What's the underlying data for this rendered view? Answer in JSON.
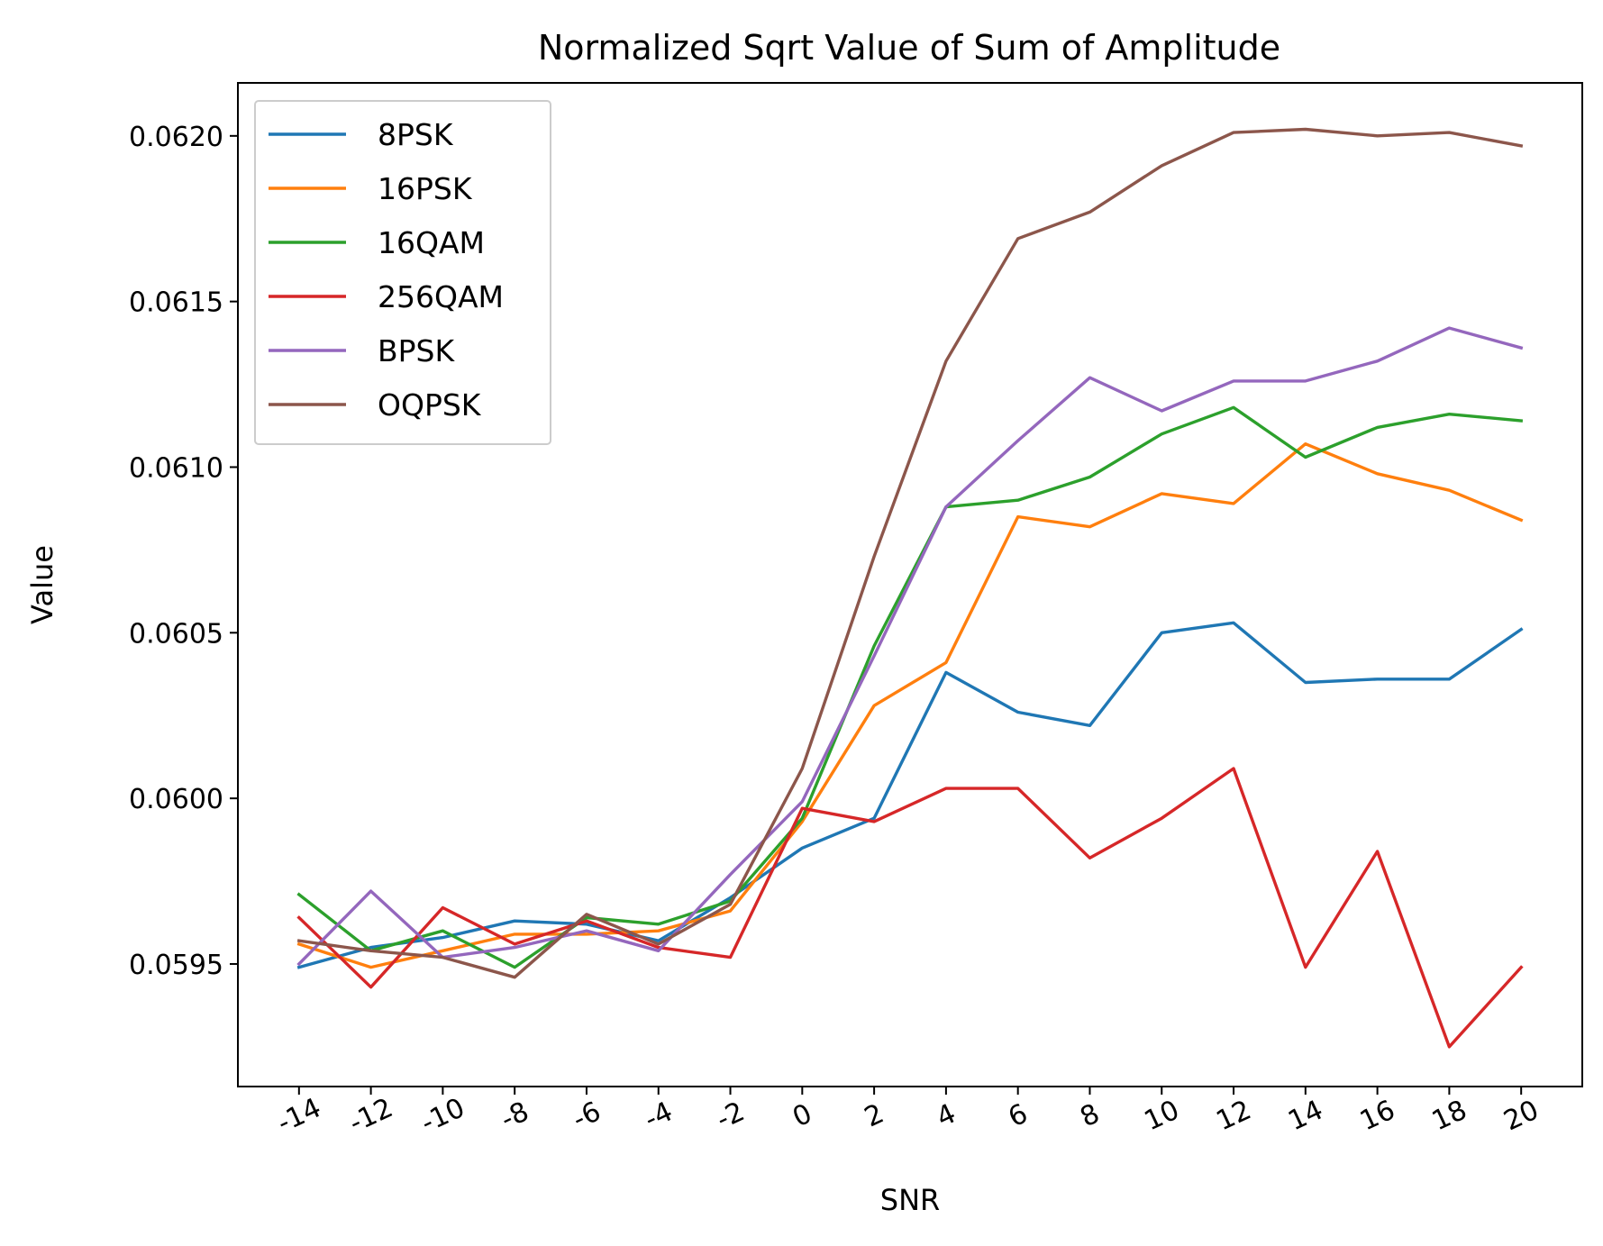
{
  "chart_data": {
    "type": "line",
    "title": "Normalized Sqrt Value of Sum of Amplitude",
    "xlabel": "SNR",
    "ylabel": "Value",
    "x": [
      -14,
      -12,
      -10,
      -8,
      -6,
      -4,
      -2,
      0,
      2,
      4,
      6,
      8,
      10,
      12,
      14,
      16,
      18,
      20
    ],
    "x_tick_labels": [
      "-14",
      "-12",
      "-10",
      "-8",
      "-6",
      "-4",
      "-2",
      "0",
      "2",
      "4",
      "6",
      "8",
      "10",
      "12",
      "14",
      "16",
      "18",
      "20"
    ],
    "y_ticks": [
      0.0595,
      0.06,
      0.0605,
      0.061,
      0.0615,
      0.062
    ],
    "y_tick_labels": [
      "0.0595",
      "0.0600",
      "0.0605",
      "0.0610",
      "0.0615",
      "0.0620"
    ],
    "ylim": [
      0.05913,
      0.06216
    ],
    "xlim": [
      -15.7,
      21.7
    ],
    "grid": false,
    "legend_position": "top-left",
    "series": [
      {
        "name": "8PSK",
        "color": "#1f77b4",
        "values": [
          0.05949,
          0.05955,
          0.05958,
          0.05963,
          0.05962,
          0.05957,
          0.0597,
          0.05985,
          0.05994,
          0.06038,
          0.06026,
          0.06022,
          0.0605,
          0.06053,
          0.06035,
          0.06036,
          0.06036,
          0.06051
        ]
      },
      {
        "name": "16PSK",
        "color": "#ff7f0e",
        "values": [
          0.05956,
          0.05949,
          0.05954,
          0.05959,
          0.05959,
          0.0596,
          0.05966,
          0.05993,
          0.06028,
          0.06041,
          0.06085,
          0.06082,
          0.06092,
          0.06089,
          0.06107,
          0.06098,
          0.06093,
          0.06084
        ]
      },
      {
        "name": "16QAM",
        "color": "#2ca02c",
        "values": [
          0.05971,
          0.05954,
          0.0596,
          0.05949,
          0.05964,
          0.05962,
          0.05969,
          0.05994,
          0.06046,
          0.06088,
          0.0609,
          0.06097,
          0.0611,
          0.06118,
          0.06103,
          0.06112,
          0.06116,
          0.06114
        ]
      },
      {
        "name": "256QAM",
        "color": "#d62728",
        "values": [
          0.05964,
          0.05943,
          0.05967,
          0.05956,
          0.05963,
          0.05955,
          0.05952,
          0.05997,
          0.05993,
          0.06003,
          0.06003,
          0.05982,
          0.05994,
          0.06009,
          0.05949,
          0.05984,
          0.05925,
          0.05949
        ]
      },
      {
        "name": "BPSK",
        "color": "#9467bd",
        "values": [
          0.0595,
          0.05972,
          0.05952,
          0.05955,
          0.0596,
          0.05954,
          0.05977,
          0.05999,
          0.06043,
          0.06088,
          0.06108,
          0.06127,
          0.06117,
          0.06126,
          0.06126,
          0.06132,
          0.06142,
          0.06136
        ]
      },
      {
        "name": "OQPSK",
        "color": "#8c564b",
        "values": [
          0.05957,
          0.05954,
          0.05952,
          0.05946,
          0.05965,
          0.05956,
          0.05968,
          0.06009,
          0.06073,
          0.06132,
          0.06169,
          0.06177,
          0.06191,
          0.06201,
          0.06202,
          0.062,
          0.06201,
          0.06197
        ]
      }
    ]
  }
}
